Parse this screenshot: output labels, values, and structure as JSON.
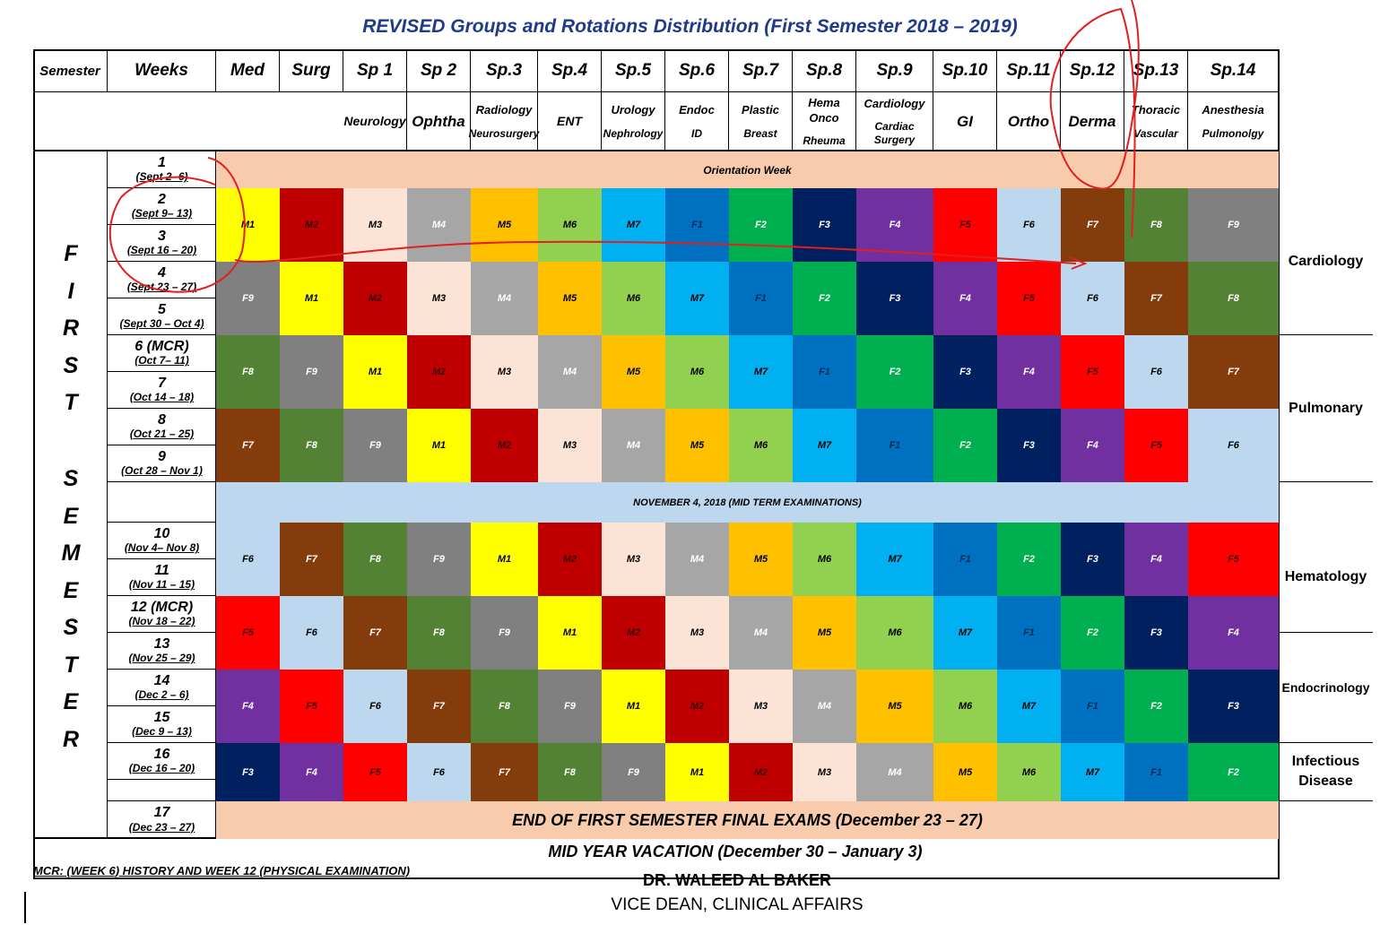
{
  "title": "REVISED Groups and Rotations Distribution (First Semester  2018 – 2019)",
  "headers": [
    "Semester",
    "Weeks",
    "Med",
    "Surg",
    "Sp 1",
    "Sp 2",
    "Sp.3",
    "Sp.4",
    "Sp.5",
    "Sp.6",
    "Sp.7",
    "Sp.8",
    "Sp.9",
    "Sp.10",
    "Sp.11",
    "Sp.12",
    "Sp.13",
    "Sp.14"
  ],
  "subheaders": [
    {
      "a": "Neurology",
      "b": ""
    },
    {
      "a": "Ophtha",
      "b": ""
    },
    {
      "a": "Radiology",
      "b": "Neurosurgery"
    },
    {
      "a": "ENT",
      "b": ""
    },
    {
      "a": "Urology",
      "b": "Nephrology"
    },
    {
      "a": "Endoc",
      "b": "ID"
    },
    {
      "a": "Plastic",
      "b": "Breast"
    },
    {
      "a": "Hema Onco",
      "b": "Rheuma"
    },
    {
      "a": "Cardiology",
      "b": "Cardiac Surgery"
    },
    {
      "a": "GI",
      "b": ""
    },
    {
      "a": "Ortho",
      "b": ""
    },
    {
      "a": "Derma",
      "b": ""
    },
    {
      "a": "Thoracic",
      "b": "Vascular"
    },
    {
      "a": "Anesthesia",
      "b": "Pulmonolgy"
    }
  ],
  "semester_letters_1": [
    "F",
    "I",
    "R",
    "S",
    "T"
  ],
  "semester_letters_2": [
    "S",
    "E",
    "M",
    "E",
    "S",
    "T",
    "E",
    "R"
  ],
  "weeks": [
    {
      "n": "1",
      "d": "(Sept 2- 6)"
    },
    {
      "n": "2",
      "d": "(Sept 9– 13)"
    },
    {
      "n": "3",
      "d": "(Sept 16 – 20)"
    },
    {
      "n": "4",
      "d": "(Sept 23 – 27)"
    },
    {
      "n": "5",
      "d": "(Sept 30 – Oct 4)"
    },
    {
      "n": "6 (MCR)",
      "d": "(Oct 7– 11)"
    },
    {
      "n": "7",
      "d": "(Oct 14 – 18)"
    },
    {
      "n": "8",
      "d": "(Oct 21 – 25)"
    },
    {
      "n": "9",
      "d": "(Oct 28 – Nov 1)"
    },
    {
      "n": "10",
      "d": "(Nov 4– Nov 8)"
    },
    {
      "n": "11",
      "d": "(Nov 11 – 15)"
    },
    {
      "n": "12 (MCR)",
      "d": "(Nov 18 – 22)"
    },
    {
      "n": "13",
      "d": "(Nov 25 – 29)"
    },
    {
      "n": "14",
      "d": "(Dec 2 – 6)"
    },
    {
      "n": "15",
      "d": "(Dec 9 – 13)"
    },
    {
      "n": "16",
      "d": "(Dec 16 – 20)"
    },
    {
      "n": "17",
      "d": "(Dec 23 – 27)"
    }
  ],
  "orientation": "Orientation Week",
  "midterm": "NOVEMBER  4, 2018  (MID TERM  EXAMINATIONS)",
  "final_exams": "END OF FIRST SEMESTER FINAL EXAMS (December 23 – 27)",
  "vacation": "MID YEAR VACATION (December 30 – January 3)",
  "mcr_note": "MCR: (WEEK 6) HISTORY AND WEEK 12 (PHYSICAL EXAMINATION)",
  "signature_name": "DR. WALEED AL BAKER",
  "signature_title": "VICE DEAN, CLINICAL AFFAIRS",
  "side_labels": [
    "Cardiology",
    "Pulmonary",
    "Hematology",
    "Endocrinology",
    "Infectious Disease"
  ],
  "group_colors": {
    "M1": "#ffff00",
    "M2": "#c00000",
    "M3": "#fbe4d5",
    "M4": "#a6a6a6",
    "M5": "#ffc000",
    "M6": "#92d050",
    "M7": "#00b0f0",
    "F1": "#0070c0",
    "F2": "#00b050",
    "F3": "#002060",
    "F4": "#7030a0",
    "F5": "#ff0000",
    "F6": "#bdd7ee",
    "F7": "#843c0c",
    "F8": "#548235",
    "F9": "#808080"
  },
  "rotation_blocks": [
    [
      "M1",
      "M2",
      "M3",
      "M4",
      "M5",
      "M6",
      "M7",
      "F1",
      "F2",
      "F3",
      "F4",
      "F5",
      "F6",
      "F7",
      "F8",
      "F9"
    ],
    [
      "F9",
      "M1",
      "M2",
      "M3",
      "M4",
      "M5",
      "M6",
      "M7",
      "F1",
      "F2",
      "F3",
      "F4",
      "F5",
      "F6",
      "F7",
      "F8"
    ],
    [
      "F8",
      "F9",
      "M1",
      "M2",
      "M3",
      "M4",
      "M5",
      "M6",
      "M7",
      "F1",
      "F2",
      "F3",
      "F4",
      "F5",
      "F6",
      "F7"
    ],
    [
      "F7",
      "F8",
      "F9",
      "M1",
      "M2",
      "M3",
      "M4",
      "M5",
      "M6",
      "M7",
      "F1",
      "F2",
      "F3",
      "F4",
      "F5",
      "F6"
    ],
    [
      "F6",
      "F7",
      "F8",
      "F9",
      "M1",
      "M2",
      "M3",
      "M4",
      "M5",
      "M6",
      "M7",
      "F1",
      "F2",
      "F3",
      "F4",
      "F5"
    ],
    [
      "F5",
      "F6",
      "F7",
      "F8",
      "F9",
      "M1",
      "M2",
      "M3",
      "M4",
      "M5",
      "M6",
      "M7",
      "F1",
      "F2",
      "F3",
      "F4"
    ],
    [
      "F4",
      "F5",
      "F6",
      "F7",
      "F8",
      "F9",
      "M1",
      "M2",
      "M3",
      "M4",
      "M5",
      "M6",
      "M7",
      "F1",
      "F2",
      "F3"
    ],
    [
      "F3",
      "F4",
      "F5",
      "F6",
      "F7",
      "F8",
      "F9",
      "M1",
      "M2",
      "M3",
      "M4",
      "M5",
      "M6",
      "M7",
      "F1",
      "F2"
    ]
  ]
}
